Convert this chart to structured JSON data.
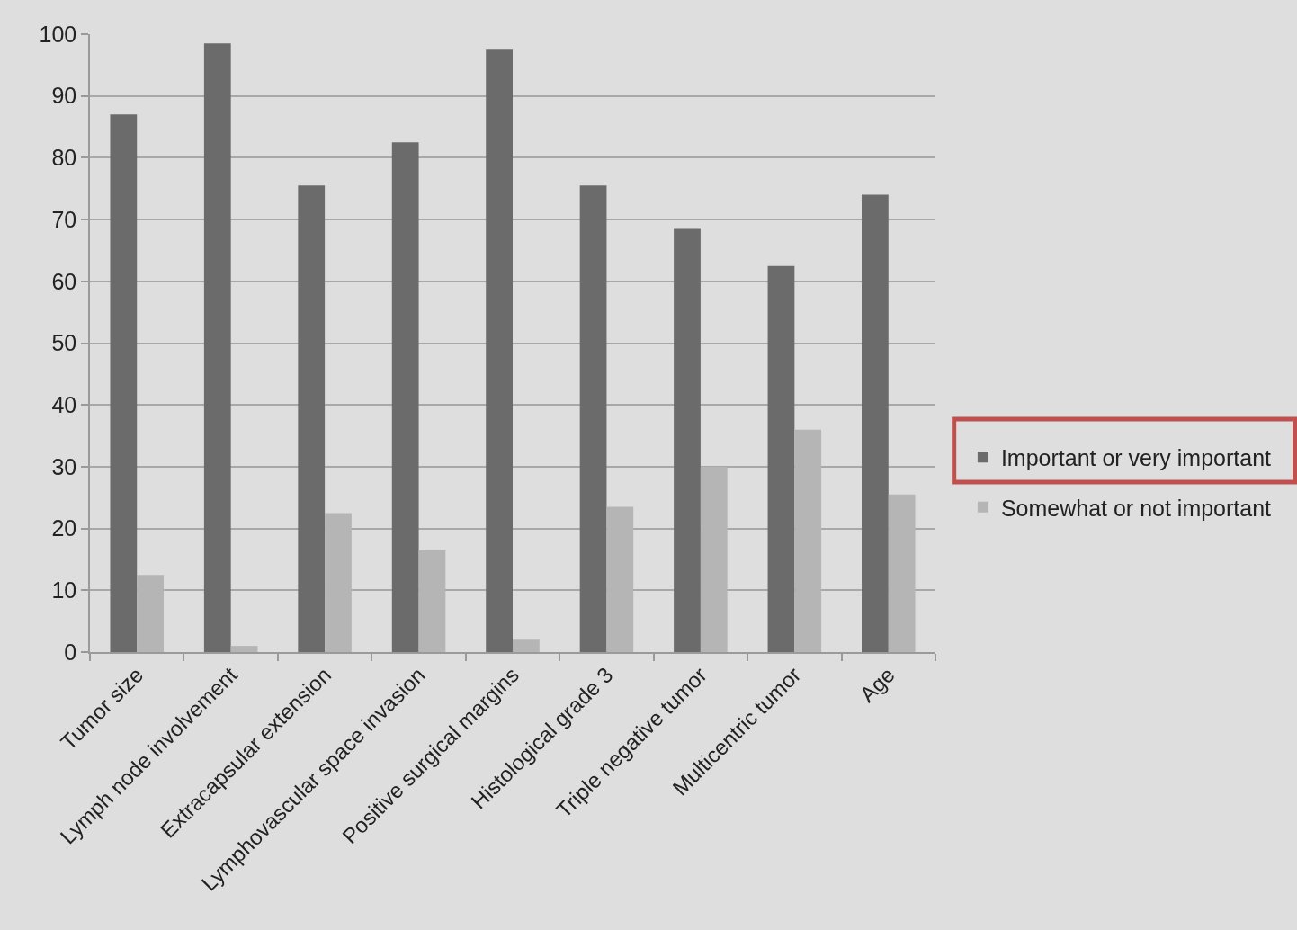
{
  "chart_data": {
    "type": "bar",
    "categories": [
      "Tumor size",
      "Lymph node involvement",
      "Extracapsular extension",
      "Lymphovascular space invasion",
      "Positive surgical margins",
      "Histological grade 3",
      "Triple negative tumor",
      "Multicentric tumor",
      "Age"
    ],
    "series": [
      {
        "name": "Important or very important",
        "color": "#6b6b6b",
        "values": [
          87,
          98.5,
          75.5,
          82.5,
          97.5,
          75.5,
          68.5,
          62.5,
          74
        ]
      },
      {
        "name": "Somewhat or not important",
        "color": "#b5b5b5",
        "values": [
          12.5,
          1,
          22.5,
          16.5,
          2,
          23.5,
          30,
          36,
          25.5
        ]
      }
    ],
    "ylim": [
      0,
      100
    ],
    "yticks": [
      0,
      10,
      20,
      30,
      40,
      50,
      60,
      70,
      80,
      90,
      100
    ],
    "grid": "y",
    "legend": "right"
  }
}
